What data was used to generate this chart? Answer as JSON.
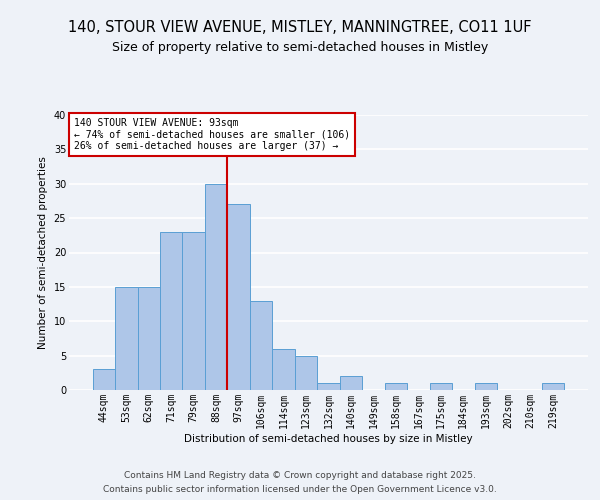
{
  "title_line1": "140, STOUR VIEW AVENUE, MISTLEY, MANNINGTREE, CO11 1UF",
  "title_line2": "Size of property relative to semi-detached houses in Mistley",
  "xlabel": "Distribution of semi-detached houses by size in Mistley",
  "ylabel": "Number of semi-detached properties",
  "categories": [
    "44sqm",
    "53sqm",
    "62sqm",
    "71sqm",
    "79sqm",
    "88sqm",
    "97sqm",
    "106sqm",
    "114sqm",
    "123sqm",
    "132sqm",
    "140sqm",
    "149sqm",
    "158sqm",
    "167sqm",
    "175sqm",
    "184sqm",
    "193sqm",
    "202sqm",
    "210sqm",
    "219sqm"
  ],
  "values": [
    3,
    15,
    15,
    23,
    23,
    30,
    27,
    13,
    6,
    5,
    1,
    2,
    0,
    1,
    0,
    1,
    0,
    1,
    0,
    0,
    1
  ],
  "bar_color": "#aec6e8",
  "bar_edgecolor": "#5a9fd4",
  "vline_x_idx": 6,
  "vline_color": "#cc0000",
  "annotation_text": "140 STOUR VIEW AVENUE: 93sqm\n← 74% of semi-detached houses are smaller (106)\n26% of semi-detached houses are larger (37) →",
  "annotation_box_edgecolor": "#cc0000",
  "annotation_box_facecolor": "#ffffff",
  "ylim": [
    0,
    40
  ],
  "yticks": [
    0,
    5,
    10,
    15,
    20,
    25,
    30,
    35,
    40
  ],
  "footer_line1": "Contains HM Land Registry data © Crown copyright and database right 2025.",
  "footer_line2": "Contains public sector information licensed under the Open Government Licence v3.0.",
  "background_color": "#eef2f8",
  "plot_background_color": "#eef2f8",
  "grid_color": "#ffffff",
  "title_fontsize": 10.5,
  "subtitle_fontsize": 9,
  "footer_fontsize": 6.5,
  "annotation_fontsize": 7,
  "axis_label_fontsize": 7.5,
  "tick_fontsize": 7
}
